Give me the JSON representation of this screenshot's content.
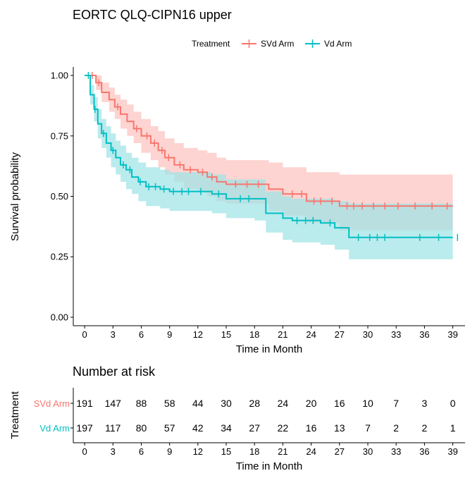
{
  "title": "EORTC QLQ-CIPN16 upper",
  "colors": {
    "svd": "#F8766D",
    "vd": "#00BFC4",
    "svd_fill": "#FCC3BF",
    "vd_fill": "#9FE3E6",
    "overlap": "#B7C9C9"
  },
  "chart_data": {
    "type": "line",
    "title": "EORTC QLQ-CIPN16 upper",
    "xlabel": "Time in Month",
    "ylabel": "Survival probability",
    "xlim": [
      -1.2,
      40.3
    ],
    "ylim": [
      -0.035,
      1.035
    ],
    "xticks": [
      0,
      3,
      6,
      9,
      12,
      15,
      18,
      21,
      24,
      27,
      30,
      33,
      36,
      39
    ],
    "yticks": [
      0.0,
      0.25,
      0.5,
      0.75,
      1.0
    ],
    "ytick_labels": [
      "0.00",
      "0.25",
      "0.50",
      "0.75",
      "1.00"
    ],
    "grid": false,
    "legend": {
      "title": "Treatment",
      "placement": "top"
    },
    "series": [
      {
        "name": "SVd Arm",
        "color": "#F8766D",
        "steps": [
          [
            0,
            1.0
          ],
          [
            1.2,
            0.97
          ],
          [
            1.8,
            0.93
          ],
          [
            2.6,
            0.9
          ],
          [
            3.2,
            0.87
          ],
          [
            3.8,
            0.84
          ],
          [
            4.5,
            0.81
          ],
          [
            5.2,
            0.78
          ],
          [
            6.0,
            0.75
          ],
          [
            7.0,
            0.72
          ],
          [
            7.8,
            0.69
          ],
          [
            8.5,
            0.66
          ],
          [
            9.5,
            0.63
          ],
          [
            10.5,
            0.61
          ],
          [
            12.0,
            0.6
          ],
          [
            13.0,
            0.58
          ],
          [
            14.0,
            0.56
          ],
          [
            15.0,
            0.55
          ],
          [
            19.5,
            0.53
          ],
          [
            21.0,
            0.51
          ],
          [
            23.5,
            0.48
          ],
          [
            27.0,
            0.46
          ],
          [
            39.0,
            0.46
          ]
        ],
        "ci_upper": [
          [
            0,
            1.0
          ],
          [
            1.2,
            1.0
          ],
          [
            1.8,
            0.97
          ],
          [
            2.6,
            0.95
          ],
          [
            3.2,
            0.92
          ],
          [
            3.8,
            0.9
          ],
          [
            4.5,
            0.88
          ],
          [
            5.2,
            0.85
          ],
          [
            6.0,
            0.82
          ],
          [
            7.0,
            0.79
          ],
          [
            7.8,
            0.77
          ],
          [
            8.5,
            0.74
          ],
          [
            9.5,
            0.72
          ],
          [
            10.5,
            0.7
          ],
          [
            12.0,
            0.69
          ],
          [
            13.0,
            0.68
          ],
          [
            14.0,
            0.66
          ],
          [
            15.0,
            0.65
          ],
          [
            19.5,
            0.64
          ],
          [
            21.0,
            0.62
          ],
          [
            23.5,
            0.6
          ],
          [
            27.0,
            0.59
          ],
          [
            39.0,
            0.59
          ]
        ],
        "ci_lower": [
          [
            0,
            1.0
          ],
          [
            1.2,
            0.94
          ],
          [
            1.8,
            0.89
          ],
          [
            2.6,
            0.85
          ],
          [
            3.2,
            0.82
          ],
          [
            3.8,
            0.78
          ],
          [
            4.5,
            0.75
          ],
          [
            5.2,
            0.72
          ],
          [
            6.0,
            0.68
          ],
          [
            7.0,
            0.65
          ],
          [
            7.8,
            0.62
          ],
          [
            8.5,
            0.59
          ],
          [
            9.5,
            0.56
          ],
          [
            10.5,
            0.53
          ],
          [
            12.0,
            0.52
          ],
          [
            13.0,
            0.5
          ],
          [
            14.0,
            0.48
          ],
          [
            15.0,
            0.47
          ],
          [
            19.5,
            0.44
          ],
          [
            21.0,
            0.42
          ],
          [
            23.5,
            0.39
          ],
          [
            27.0,
            0.36
          ],
          [
            39.0,
            0.36
          ]
        ],
        "censor_times": [
          0.8,
          1.5,
          3.5,
          5.5,
          6.6,
          7.4,
          8.2,
          8.9,
          10.1,
          11.2,
          12.5,
          13.5,
          16.0,
          17.2,
          18.4,
          22.0,
          23.0,
          24.3,
          25.0,
          26.2,
          27.8,
          28.5,
          29.4,
          30.6,
          31.8,
          33.2,
          35.0,
          36.8,
          38.4
        ]
      },
      {
        "name": "Vd Arm",
        "color": "#00BFC4",
        "steps": [
          [
            0,
            1.0
          ],
          [
            0.6,
            0.92
          ],
          [
            1.0,
            0.86
          ],
          [
            1.4,
            0.8
          ],
          [
            1.8,
            0.76
          ],
          [
            2.3,
            0.72
          ],
          [
            2.8,
            0.69
          ],
          [
            3.3,
            0.66
          ],
          [
            3.8,
            0.63
          ],
          [
            4.4,
            0.61
          ],
          [
            5.0,
            0.58
          ],
          [
            5.7,
            0.56
          ],
          [
            6.5,
            0.54
          ],
          [
            8.0,
            0.53
          ],
          [
            9.0,
            0.52
          ],
          [
            13.5,
            0.51
          ],
          [
            15.0,
            0.49
          ],
          [
            18.0,
            0.49
          ],
          [
            19.2,
            0.43
          ],
          [
            21.0,
            0.41
          ],
          [
            22.0,
            0.4
          ],
          [
            25.0,
            0.39
          ],
          [
            26.5,
            0.37
          ],
          [
            28.0,
            0.33
          ],
          [
            39.0,
            0.33
          ]
        ],
        "ci_upper": [
          [
            0,
            1.0
          ],
          [
            0.6,
            0.96
          ],
          [
            1.0,
            0.91
          ],
          [
            1.4,
            0.86
          ],
          [
            1.8,
            0.82
          ],
          [
            2.3,
            0.79
          ],
          [
            2.8,
            0.76
          ],
          [
            3.3,
            0.73
          ],
          [
            3.8,
            0.71
          ],
          [
            4.4,
            0.68
          ],
          [
            5.0,
            0.66
          ],
          [
            5.7,
            0.64
          ],
          [
            6.5,
            0.62
          ],
          [
            8.0,
            0.61
          ],
          [
            9.0,
            0.6
          ],
          [
            13.5,
            0.59
          ],
          [
            15.0,
            0.57
          ],
          [
            18.0,
            0.57
          ],
          [
            19.2,
            0.52
          ],
          [
            21.0,
            0.5
          ],
          [
            22.0,
            0.49
          ],
          [
            25.0,
            0.49
          ],
          [
            26.5,
            0.48
          ],
          [
            28.0,
            0.47
          ],
          [
            39.0,
            0.47
          ]
        ],
        "ci_lower": [
          [
            0,
            1.0
          ],
          [
            0.6,
            0.88
          ],
          [
            1.0,
            0.81
          ],
          [
            1.4,
            0.74
          ],
          [
            1.8,
            0.7
          ],
          [
            2.3,
            0.66
          ],
          [
            2.8,
            0.62
          ],
          [
            3.3,
            0.59
          ],
          [
            3.8,
            0.56
          ],
          [
            4.4,
            0.53
          ],
          [
            5.0,
            0.51
          ],
          [
            5.7,
            0.48
          ],
          [
            6.5,
            0.46
          ],
          [
            8.0,
            0.45
          ],
          [
            9.0,
            0.44
          ],
          [
            13.5,
            0.43
          ],
          [
            15.0,
            0.41
          ],
          [
            18.0,
            0.4
          ],
          [
            19.2,
            0.35
          ],
          [
            21.0,
            0.32
          ],
          [
            22.0,
            0.31
          ],
          [
            25.0,
            0.3
          ],
          [
            26.5,
            0.28
          ],
          [
            28.0,
            0.24
          ],
          [
            39.0,
            0.24
          ]
        ],
        "censor_times": [
          0.4,
          1.1,
          2.0,
          3.0,
          4.1,
          4.8,
          5.9,
          6.8,
          7.5,
          8.4,
          9.4,
          10.3,
          11.0,
          12.3,
          14.2,
          16.5,
          17.4,
          22.5,
          23.4,
          24.2,
          26.0,
          29.0,
          30.2,
          31.0,
          31.8,
          35.5,
          37.5,
          39.5
        ]
      }
    ]
  },
  "risk_table": {
    "title": "Number at risk",
    "ylabel": "Treatment",
    "xlabel": "Time in Month",
    "times": [
      0,
      3,
      6,
      9,
      12,
      15,
      18,
      21,
      24,
      27,
      30,
      33,
      36,
      39
    ],
    "rows": [
      {
        "label": "SVd Arm",
        "color": "#F8766D",
        "values": [
          "191",
          "147",
          "88",
          "58",
          "44",
          "30",
          "28",
          "24",
          "20",
          "16",
          "10",
          "7",
          "3",
          "0"
        ]
      },
      {
        "label": "Vd Arm",
        "color": "#00BFC4",
        "values": [
          "197",
          "117",
          "80",
          "57",
          "42",
          "34",
          "27",
          "22",
          "16",
          "13",
          "7",
          "2",
          "2",
          "1"
        ]
      }
    ]
  }
}
